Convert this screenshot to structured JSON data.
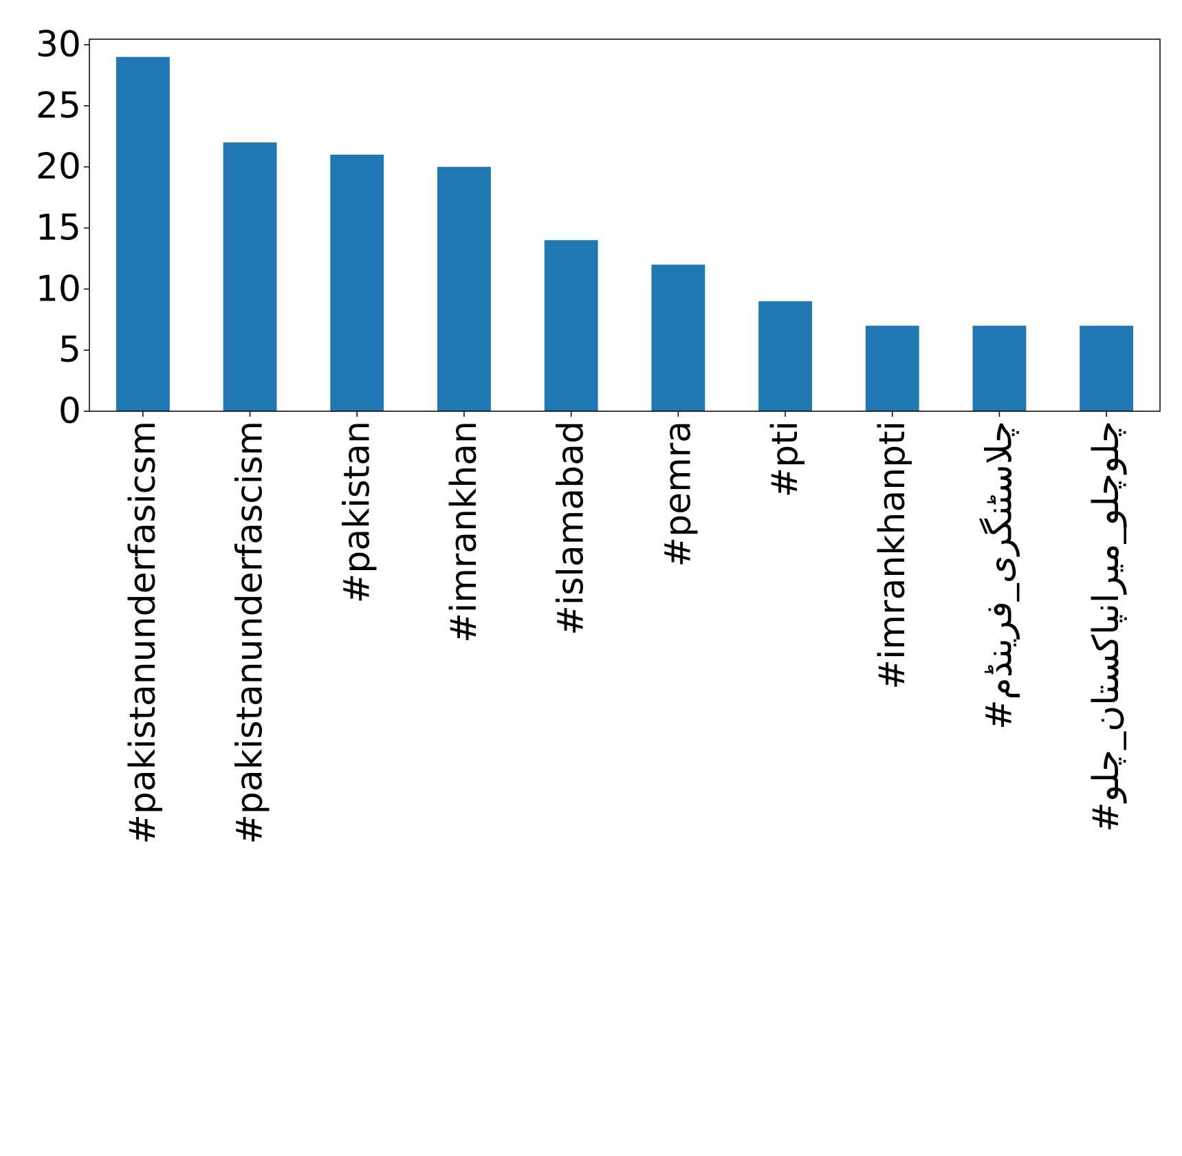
{
  "chart_data": {
    "type": "bar",
    "title": "",
    "xlabel": "",
    "ylabel": "",
    "categories": [
      "#pakistanunderfasicsm",
      "#pakistanunderfascism",
      "#pakistan",
      "#imrankhan",
      "#islamabad",
      "#pemra",
      "#pti",
      "#imrankhanpti",
      "#چلاسٹنگری_فرینڈم",
      "#چلوچلو_میرانپاکستان_چلو"
    ],
    "values": [
      29,
      22,
      21,
      20,
      14,
      12,
      9,
      7,
      7,
      7
    ],
    "ylim": [
      0,
      30.45
    ],
    "yticks": [
      0,
      5,
      10,
      15,
      20,
      25,
      30
    ],
    "grid": false,
    "legend": "none",
    "bar_color": "#1f77b4"
  }
}
